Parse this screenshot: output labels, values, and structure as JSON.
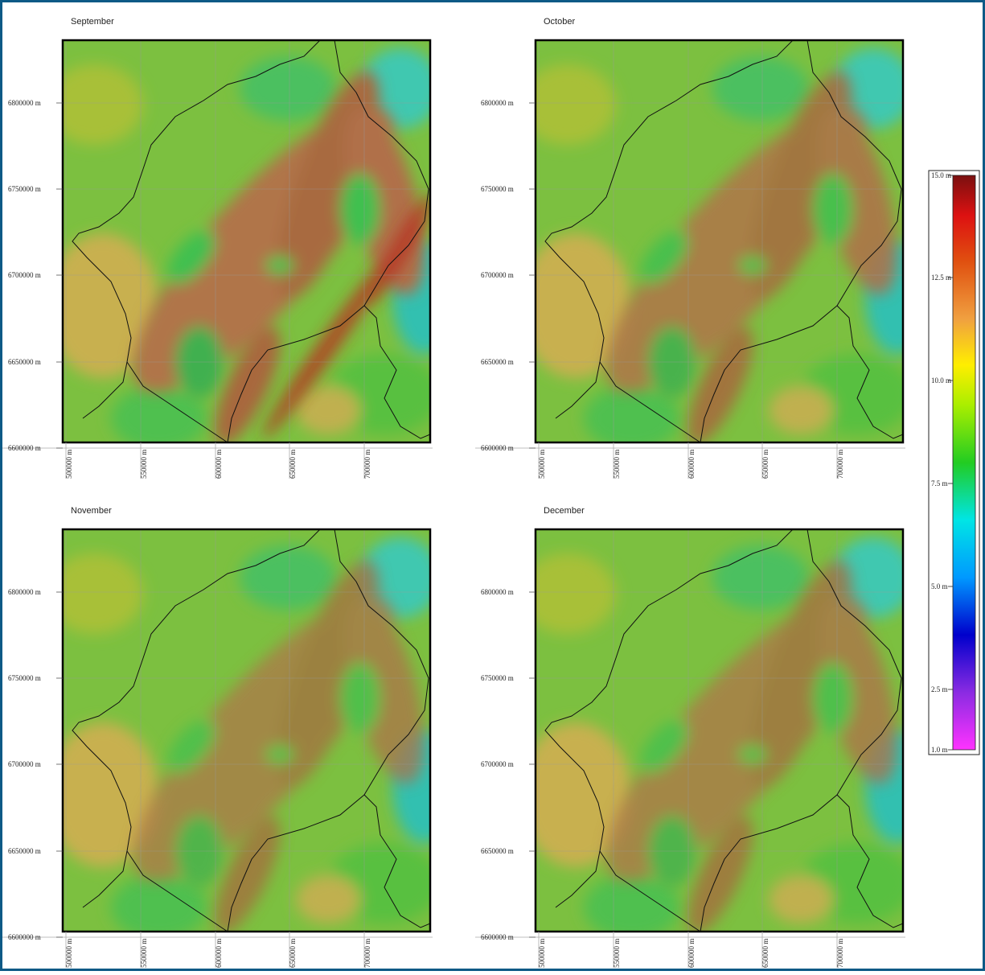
{
  "panels": [
    {
      "title": "September",
      "y_tick_labels": [
        "6800000 m",
        "6750000 m",
        "6700000 m",
        "6650000 m",
        "6600000 m"
      ],
      "x_tick_labels": [
        "500000 m",
        "550000 m",
        "600000 m",
        "650000 m",
        "700000 m"
      ]
    },
    {
      "title": "October",
      "y_tick_labels": [
        "6800000 m",
        "6750000 m",
        "6700000 m",
        "6650000 m",
        "6600000 m"
      ],
      "x_tick_labels": [
        "500000 m",
        "550000 m",
        "600000 m",
        "650000 m",
        "700000 m"
      ]
    },
    {
      "title": "November",
      "y_tick_labels": [
        "6800000 m",
        "6750000 m",
        "6700000 m",
        "6650000 m",
        "6600000 m"
      ],
      "x_tick_labels": [
        "500000 m",
        "550000 m",
        "600000 m",
        "650000 m",
        "700000 m"
      ]
    },
    {
      "title": "December",
      "y_tick_labels": [
        "6800000 m",
        "6750000 m",
        "6700000 m",
        "6650000 m",
        "6600000 m"
      ],
      "x_tick_labels": [
        "500000 m",
        "550000 m",
        "600000 m",
        "650000 m",
        "700000 m"
      ]
    }
  ],
  "legend": {
    "labels": [
      "15.0 m",
      "12.5 m",
      "10.0 m",
      "7.5 m",
      "5.0 m",
      "2.5 m",
      "1.0 m"
    ]
  }
}
